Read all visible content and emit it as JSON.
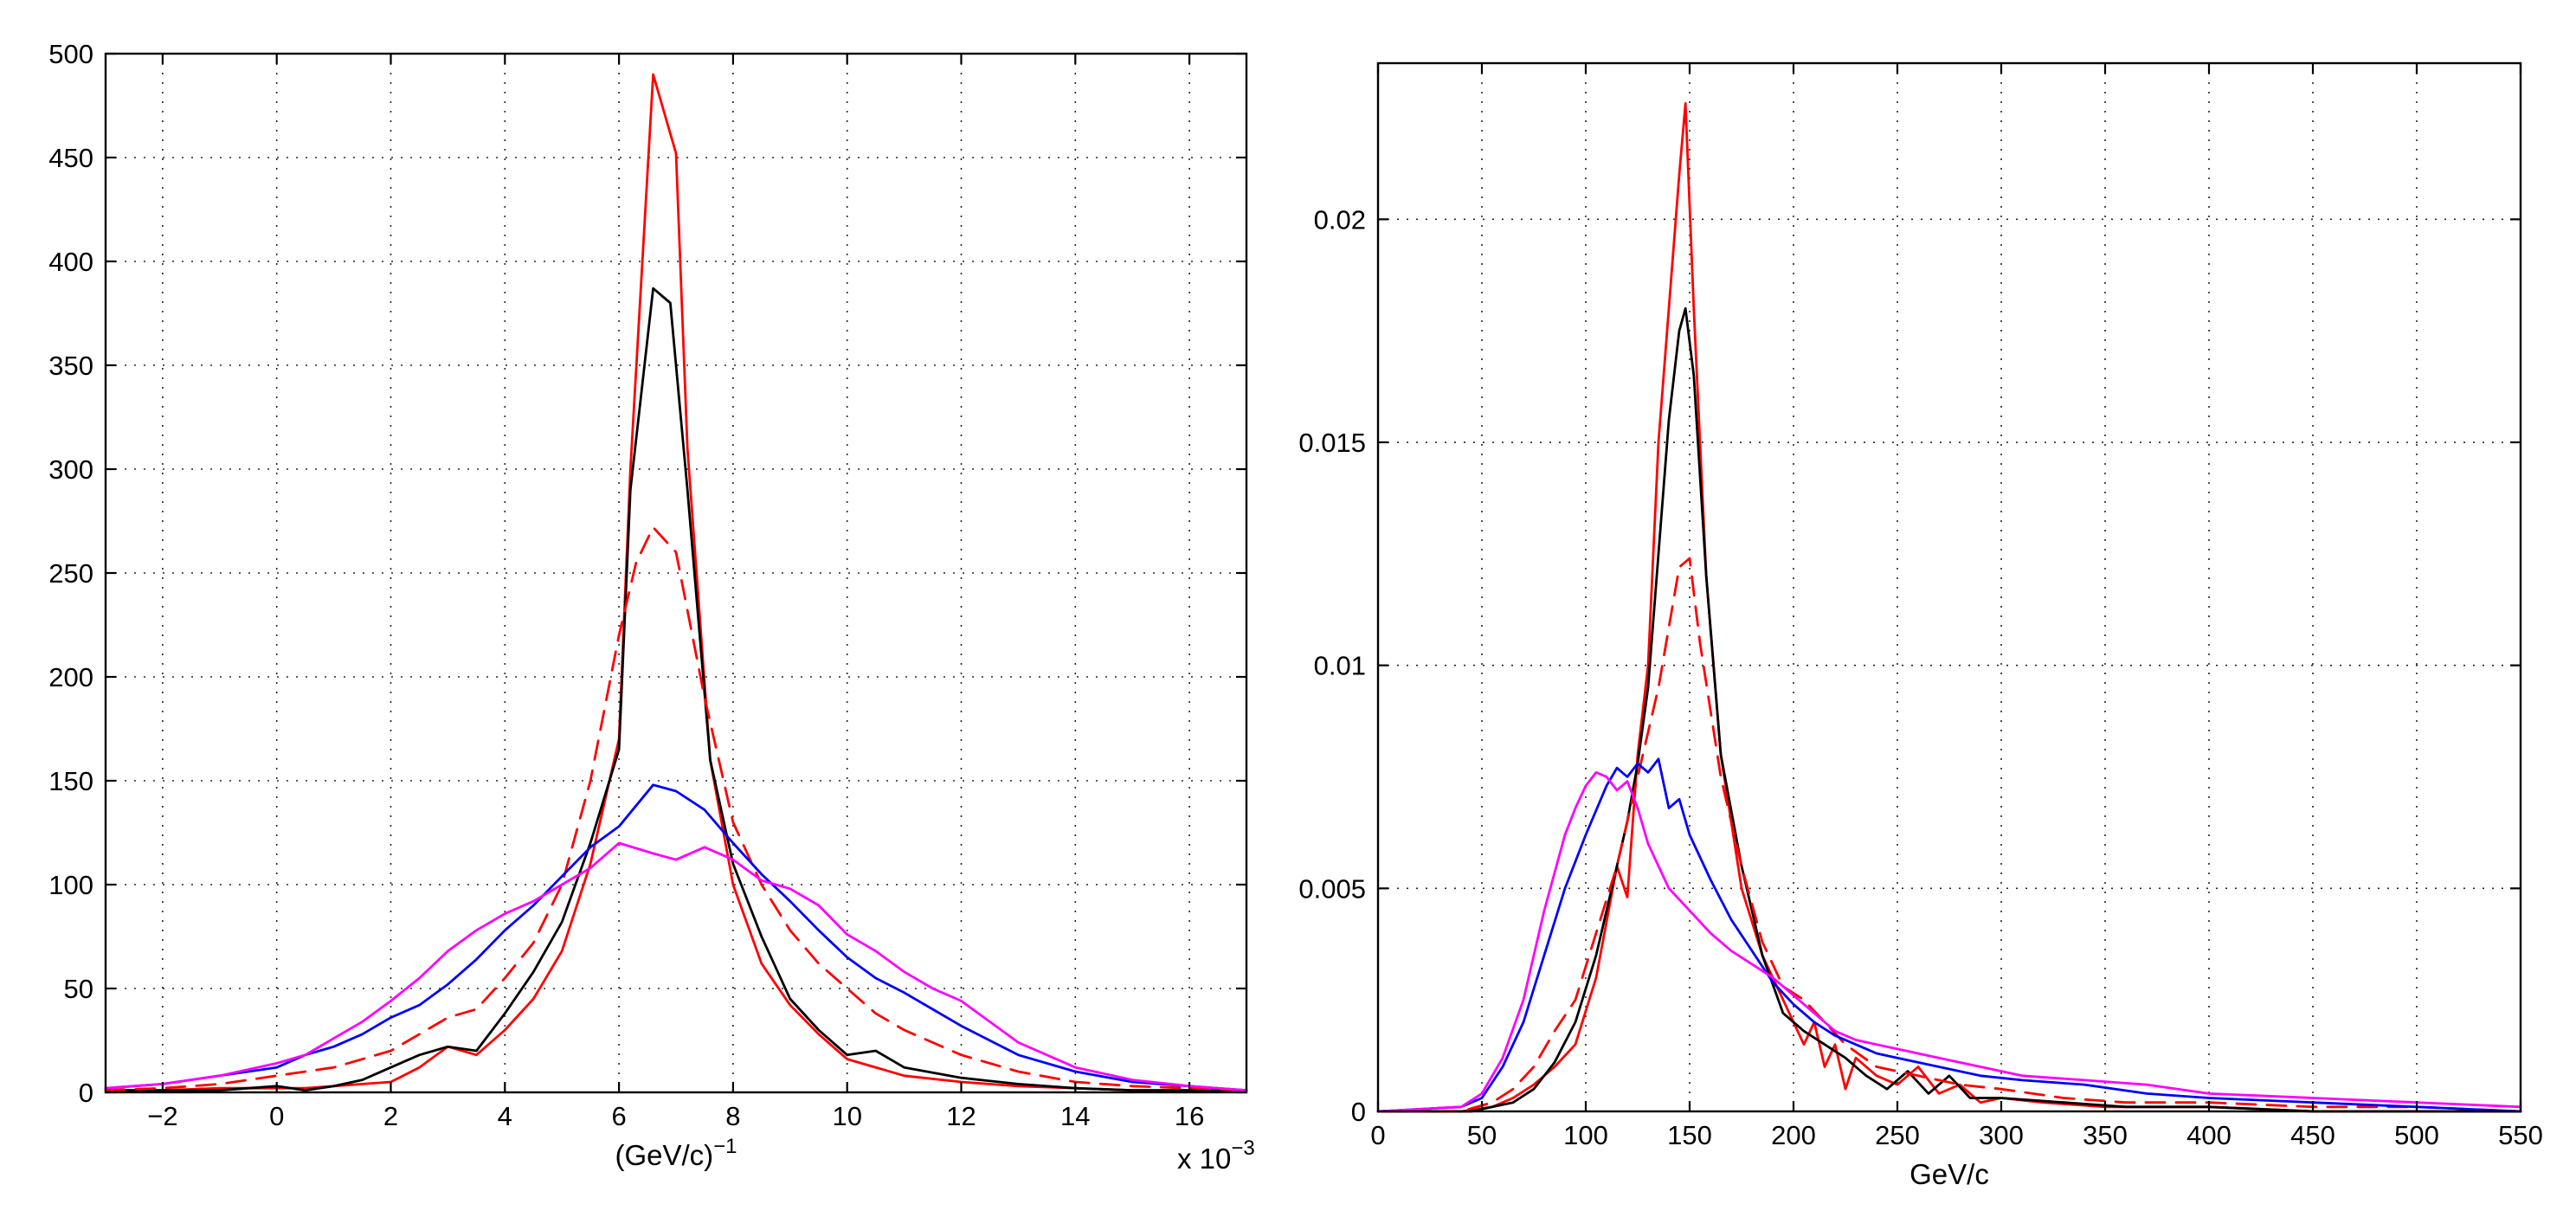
{
  "colors": {
    "red": "#ff0000",
    "black": "#000000",
    "blue": "#0000ff",
    "magenta": "#ff00ff"
  },
  "chart_data": [
    {
      "type": "line",
      "title": "",
      "xlabel": "(GeV/c)",
      "xlabel_sup": "−1",
      "x_exponent_label": "x 10",
      "x_exponent_sup": "−3",
      "ylabel": "",
      "xlim": [
        -3,
        17
      ],
      "ylim": [
        0,
        500
      ],
      "grid": true,
      "xticks": [
        -2,
        0,
        2,
        4,
        6,
        8,
        10,
        12,
        14,
        16
      ],
      "xtick_labels": [
        "−2",
        "0",
        "2",
        "4",
        "6",
        "8",
        "10",
        "12",
        "14",
        "16"
      ],
      "yticks": [
        0,
        50,
        100,
        150,
        200,
        250,
        300,
        350,
        400,
        450,
        500
      ],
      "ytick_labels": [
        "0",
        "50",
        "100",
        "150",
        "200",
        "250",
        "300",
        "350",
        "400",
        "450",
        "500"
      ],
      "series": [
        {
          "name": "red-solid",
          "color": "#ff0000",
          "dash": "solid",
          "x": [
            -3,
            -2,
            -1,
            0,
            0.5,
            1,
            1.5,
            2,
            2.5,
            3,
            3.5,
            4,
            4.5,
            5,
            5.5,
            6,
            6.2,
            6.6,
            7,
            7.2,
            7.6,
            8,
            8.5,
            9,
            9.5,
            10,
            11,
            12,
            13,
            14,
            15,
            16,
            17
          ],
          "y": [
            1,
            1,
            2,
            2,
            2,
            3,
            4,
            5,
            12,
            22,
            18,
            30,
            45,
            68,
            110,
            170,
            300,
            490,
            452,
            310,
            160,
            100,
            62,
            42,
            28,
            16,
            8,
            5,
            3,
            2,
            1,
            1,
            1
          ]
        },
        {
          "name": "black-solid",
          "color": "#000000",
          "dash": "solid",
          "x": [
            -3,
            -2,
            -1,
            0,
            0.5,
            1,
            1.5,
            2,
            2.5,
            3,
            3.5,
            4,
            4.5,
            5,
            5.5,
            6,
            6.2,
            6.6,
            6.9,
            7.2,
            7.6,
            8,
            8.5,
            9,
            9.5,
            10,
            10.5,
            11,
            12,
            13,
            14,
            15,
            16,
            17
          ],
          "y": [
            1,
            1,
            1,
            3,
            1,
            3,
            6,
            12,
            18,
            22,
            20,
            38,
            58,
            82,
            120,
            165,
            290,
            387,
            380,
            290,
            160,
            110,
            75,
            45,
            30,
            18,
            20,
            12,
            7,
            4,
            2,
            1,
            1,
            1
          ]
        },
        {
          "name": "red-dashed",
          "color": "#ff0000",
          "dash": "dashed",
          "x": [
            -3,
            -2,
            -1,
            0,
            1,
            2,
            2.5,
            3,
            3.5,
            4,
            4.5,
            5,
            5.5,
            6,
            6.3,
            6.6,
            7,
            7.5,
            8,
            8.5,
            9,
            9.5,
            10,
            10.5,
            11,
            12,
            13,
            14,
            15,
            16,
            17
          ],
          "y": [
            1,
            2,
            4,
            8,
            12,
            20,
            28,
            36,
            40,
            55,
            72,
            100,
            150,
            220,
            255,
            272,
            260,
            190,
            130,
            100,
            78,
            62,
            50,
            38,
            30,
            18,
            10,
            5,
            3,
            2,
            1
          ]
        },
        {
          "name": "blue-solid",
          "color": "#0000ff",
          "dash": "solid",
          "x": [
            -3,
            -2,
            -1,
            0,
            0.5,
            1,
            1.5,
            2,
            2.5,
            3,
            3.5,
            4,
            4.5,
            5,
            5.5,
            6,
            6.6,
            7,
            7.5,
            8,
            8.5,
            9,
            9.5,
            10,
            10.5,
            11,
            11.5,
            12,
            13,
            14,
            15,
            16,
            17
          ],
          "y": [
            2,
            4,
            8,
            12,
            18,
            22,
            28,
            36,
            42,
            52,
            64,
            78,
            90,
            104,
            118,
            128,
            148,
            145,
            136,
            120,
            105,
            92,
            78,
            65,
            55,
            48,
            40,
            32,
            18,
            10,
            5,
            3,
            1
          ]
        },
        {
          "name": "magenta-solid",
          "color": "#ff00ff",
          "dash": "solid",
          "x": [
            -3,
            -2,
            -1,
            0,
            0.5,
            1,
            1.5,
            2,
            2.5,
            3,
            3.5,
            4,
            4.5,
            5,
            5.5,
            6,
            6.6,
            7,
            7.5,
            8,
            8.5,
            9,
            9.5,
            10,
            10.5,
            11,
            11.5,
            12,
            13,
            14,
            15,
            16,
            17
          ],
          "y": [
            2,
            4,
            8,
            14,
            18,
            26,
            34,
            44,
            55,
            68,
            78,
            86,
            92,
            100,
            108,
            120,
            115,
            112,
            118,
            112,
            102,
            98,
            90,
            76,
            68,
            58,
            50,
            44,
            24,
            12,
            6,
            3,
            1
          ]
        }
      ]
    },
    {
      "type": "line",
      "title": "",
      "xlabel": "GeV/c",
      "ylabel": "",
      "xlim": [
        0,
        550
      ],
      "ylim": [
        0,
        0.0235
      ],
      "grid": true,
      "xticks": [
        0,
        50,
        100,
        150,
        200,
        250,
        300,
        350,
        400,
        450,
        500,
        550
      ],
      "xtick_labels": [
        "0",
        "50",
        "100",
        "150",
        "200",
        "250",
        "300",
        "350",
        "400",
        "450",
        "500",
        "550"
      ],
      "yticks": [
        0,
        0.005,
        0.01,
        0.015,
        0.02
      ],
      "ytick_labels": [
        "0",
        "0.005",
        "0.01",
        "0.015",
        "0.02"
      ],
      "series": [
        {
          "name": "red-solid",
          "color": "#ff0000",
          "dash": "solid",
          "x": [
            0,
            40,
            55,
            65,
            75,
            85,
            95,
            105,
            115,
            120,
            125,
            130,
            135,
            140,
            145,
            148,
            152,
            158,
            165,
            175,
            185,
            195,
            205,
            210,
            215,
            220,
            225,
            230,
            240,
            250,
            260,
            270,
            280,
            290,
            300,
            320,
            350,
            400,
            450,
            500,
            550
          ],
          "y": [
            0,
            0,
            0.0001,
            0.0003,
            0.0006,
            0.001,
            0.0015,
            0.003,
            0.0055,
            0.0048,
            0.008,
            0.01,
            0.015,
            0.018,
            0.021,
            0.0226,
            0.018,
            0.012,
            0.008,
            0.005,
            0.0035,
            0.0025,
            0.0015,
            0.002,
            0.001,
            0.0015,
            0.0005,
            0.0012,
            0.0008,
            0.0006,
            0.001,
            0.0004,
            0.0006,
            0.0002,
            0.0003,
            0.0002,
            0.0001,
            0.0001,
            0,
            0,
            0
          ]
        },
        {
          "name": "black-solid",
          "color": "#000000",
          "dash": "solid",
          "x": [
            0,
            45,
            55,
            65,
            75,
            85,
            95,
            105,
            115,
            120,
            125,
            130,
            135,
            140,
            145,
            148,
            152,
            158,
            165,
            175,
            185,
            195,
            205,
            215,
            225,
            235,
            245,
            255,
            265,
            275,
            285,
            300,
            330,
            360,
            400,
            450,
            500,
            550
          ],
          "y": [
            0,
            0,
            0.0001,
            0.0002,
            0.0005,
            0.0011,
            0.002,
            0.0035,
            0.0055,
            0.0065,
            0.0078,
            0.0095,
            0.0125,
            0.0155,
            0.0175,
            0.018,
            0.0165,
            0.012,
            0.008,
            0.0055,
            0.0035,
            0.0022,
            0.0018,
            0.0015,
            0.0012,
            0.0008,
            0.0005,
            0.0009,
            0.0004,
            0.0008,
            0.0003,
            0.0003,
            0.0002,
            0.0001,
            0.0001,
            0,
            0,
            0
          ]
        },
        {
          "name": "red-dashed",
          "color": "#ff0000",
          "dash": "dashed",
          "x": [
            0,
            40,
            55,
            65,
            75,
            85,
            95,
            105,
            115,
            125,
            135,
            145,
            150,
            155,
            165,
            175,
            185,
            195,
            205,
            215,
            225,
            240,
            260,
            280,
            300,
            330,
            360,
            400,
            450,
            500,
            550
          ],
          "y": [
            0,
            0,
            0.0002,
            0.0005,
            0.001,
            0.0018,
            0.0025,
            0.004,
            0.0055,
            0.0075,
            0.0095,
            0.0122,
            0.0124,
            0.0105,
            0.0075,
            0.0055,
            0.0038,
            0.0028,
            0.0025,
            0.002,
            0.0015,
            0.001,
            0.0008,
            0.0006,
            0.0005,
            0.0003,
            0.0002,
            0.0002,
            0.0001,
            0.0001,
            0
          ]
        },
        {
          "name": "blue-solid",
          "color": "#0000ff",
          "dash": "solid",
          "x": [
            0,
            40,
            50,
            60,
            70,
            80,
            90,
            100,
            110,
            115,
            120,
            125,
            130,
            135,
            140,
            145,
            150,
            160,
            170,
            180,
            190,
            200,
            210,
            220,
            230,
            240,
            250,
            270,
            290,
            310,
            340,
            370,
            400,
            450,
            500,
            550
          ],
          "y": [
            0,
            0.0001,
            0.0003,
            0.001,
            0.002,
            0.0035,
            0.005,
            0.0062,
            0.0073,
            0.0077,
            0.0075,
            0.0078,
            0.0076,
            0.0079,
            0.0068,
            0.007,
            0.0062,
            0.0052,
            0.0043,
            0.0036,
            0.0029,
            0.0024,
            0.002,
            0.0017,
            0.0015,
            0.0013,
            0.0012,
            0.001,
            0.0008,
            0.0007,
            0.0006,
            0.0004,
            0.0003,
            0.0002,
            0.0001,
            0
          ]
        },
        {
          "name": "magenta-solid",
          "color": "#ff00ff",
          "dash": "solid",
          "x": [
            0,
            40,
            50,
            60,
            70,
            80,
            90,
            95,
            100,
            105,
            110,
            115,
            120,
            125,
            130,
            140,
            150,
            160,
            170,
            180,
            190,
            200,
            210,
            220,
            230,
            240,
            250,
            270,
            290,
            310,
            340,
            370,
            400,
            450,
            500,
            550
          ],
          "y": [
            0,
            0.0001,
            0.0004,
            0.0012,
            0.0025,
            0.0045,
            0.0062,
            0.0068,
            0.0073,
            0.0076,
            0.0075,
            0.0072,
            0.0074,
            0.0068,
            0.006,
            0.005,
            0.0045,
            0.004,
            0.0036,
            0.0033,
            0.003,
            0.0026,
            0.0022,
            0.0018,
            0.0016,
            0.0015,
            0.0014,
            0.0012,
            0.001,
            0.0008,
            0.0007,
            0.0006,
            0.0004,
            0.0003,
            0.0002,
            0.0001
          ]
        }
      ]
    }
  ]
}
